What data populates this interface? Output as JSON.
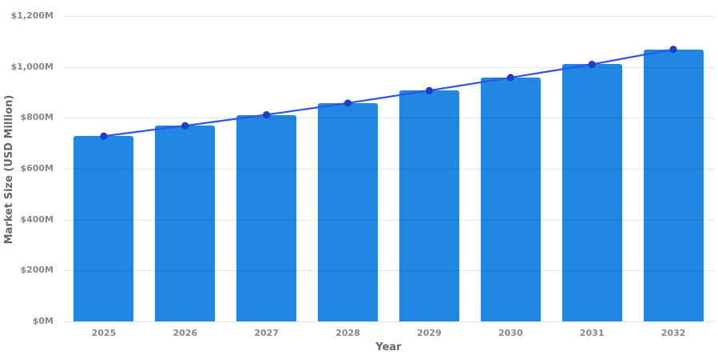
{
  "chart_data": {
    "type": "bar",
    "overlay": "line",
    "title": "",
    "xlabel": "Year",
    "ylabel": "Market Size (USD Million)",
    "categories": [
      "2025",
      "2026",
      "2027",
      "2028",
      "2029",
      "2030",
      "2031",
      "2032"
    ],
    "values": [
      728,
      769,
      812,
      858,
      907,
      958,
      1010,
      1069
    ],
    "series": [
      {
        "name": "Market Size (bar)",
        "values": [
          728,
          769,
          812,
          858,
          907,
          958,
          1010,
          1069
        ]
      },
      {
        "name": "Market Size trend (line with dot markers)",
        "values": [
          728,
          769,
          812,
          858,
          907,
          958,
          1010,
          1069
        ]
      }
    ],
    "ylim": [
      0,
      1200
    ],
    "ytick_step": 200,
    "ytick_labels": [
      "$0M",
      "$200M",
      "$400M",
      "$600M",
      "$800M",
      "$1,000M",
      "$1,200M"
    ],
    "grid": true,
    "legend": "none",
    "colors": {
      "bar_fill": "#2287e2",
      "line_stroke": "#2f55e8",
      "marker_fill": "#1d40cf",
      "marker_stroke": "#1733ad",
      "grid_line": "rgba(0,0,0,0.10)",
      "tick_text": "#878787",
      "axis_title_text": "#666666",
      "background": "#ffffff"
    }
  }
}
